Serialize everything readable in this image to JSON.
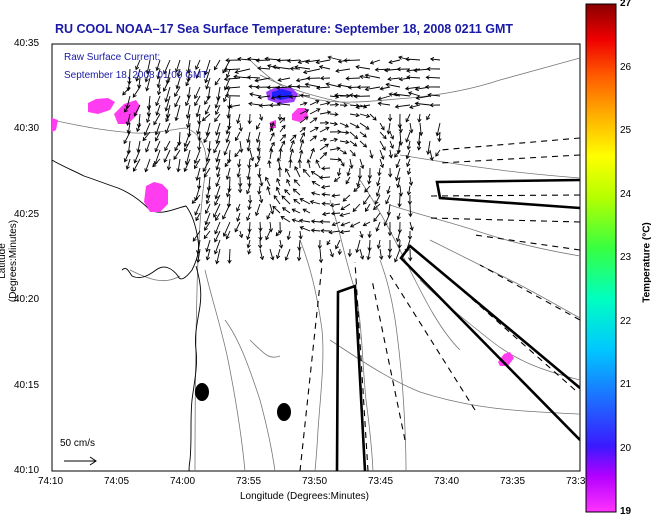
{
  "title": "RU COOL  NOAA–17  Sea Surface Temperature:  September 18, 2008 0211 GMT",
  "map": {
    "current_label_line1": "Raw Surface Current:",
    "current_label_line2": "September 18, 2008 01:00 GMT",
    "scale_label": "50 cm/s",
    "y_axis_label": "Latitude (Degrees:Minutes)",
    "x_axis_label": "Longitude (Degrees:Minutes)",
    "y_ticks": [
      "40:35",
      "40:30",
      "40:25",
      "40:20",
      "40:15",
      "40:10"
    ],
    "x_ticks": [
      "74:10",
      "74:05",
      "74:00",
      "73:55",
      "73:50",
      "73:45",
      "73:40",
      "73:35",
      "73:3"
    ]
  },
  "colorbar": {
    "title": "Temperature (°C)",
    "min": 19,
    "max": 27,
    "ticks": [
      "27",
      "26",
      "25",
      "24",
      "23",
      "22",
      "21",
      "20",
      "19"
    ]
  }
}
